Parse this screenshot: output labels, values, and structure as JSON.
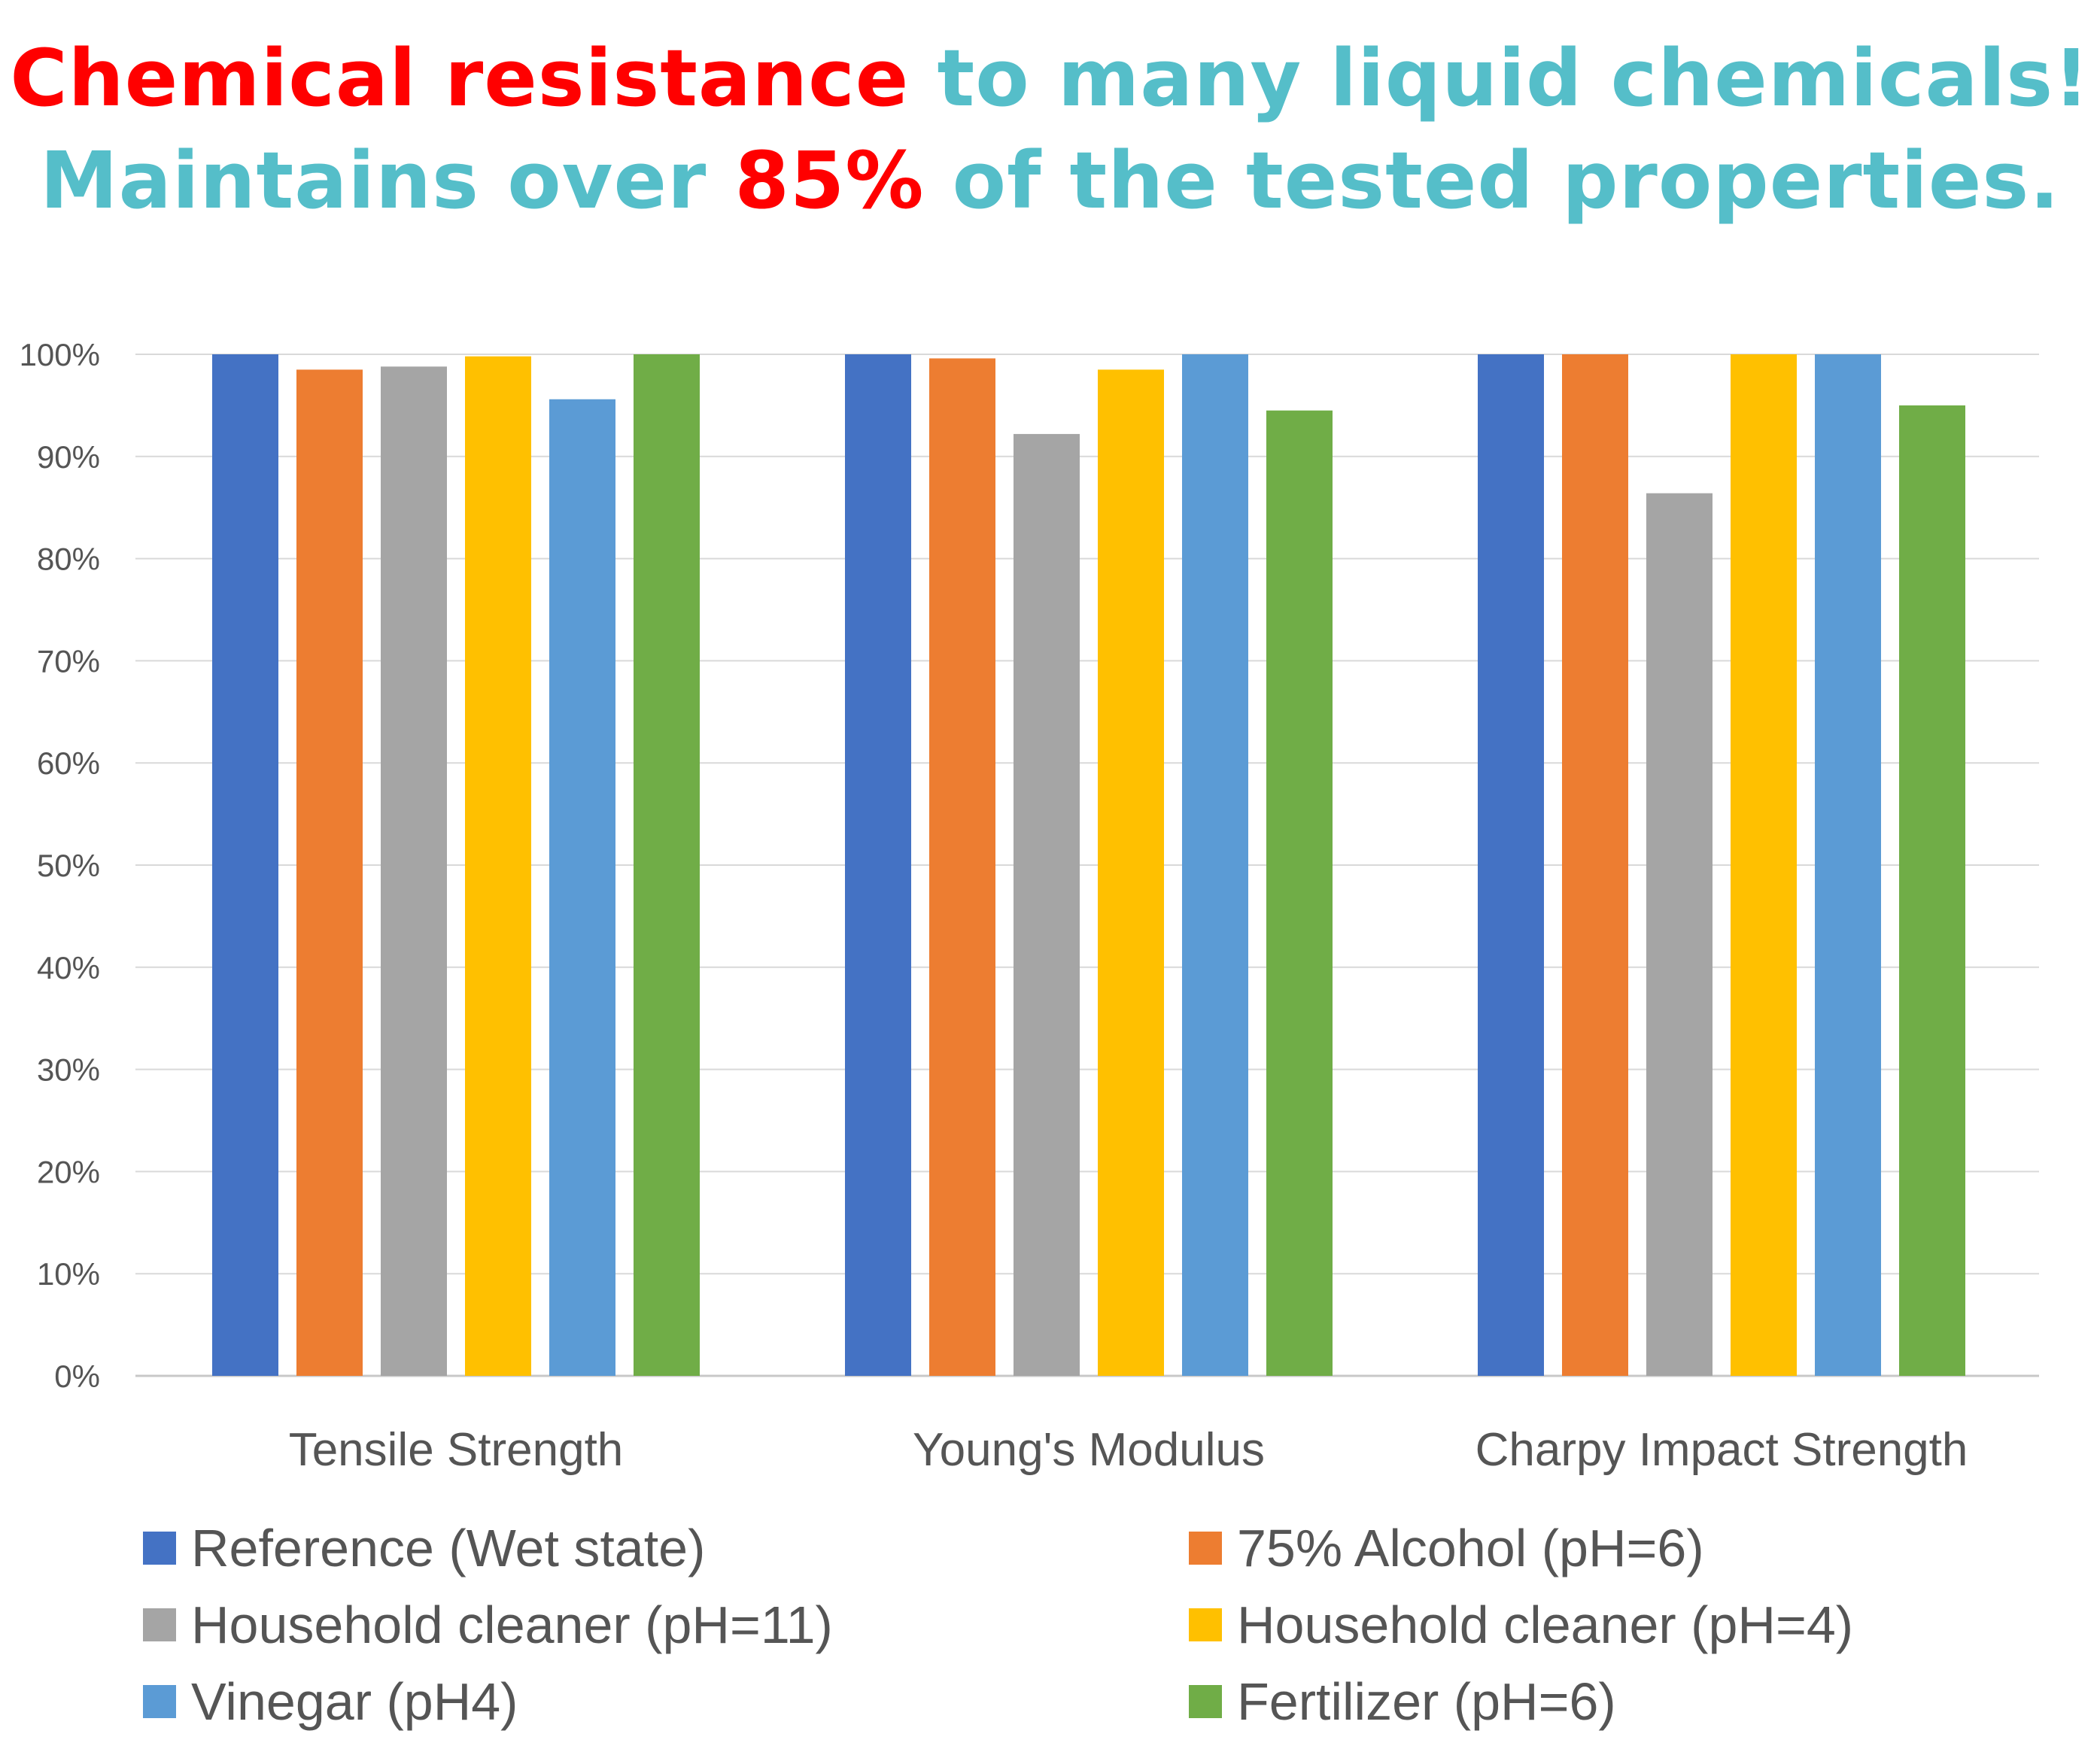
{
  "headline": {
    "line1_red": "Chemical resistance",
    "line1_teal": " to many liquid chemicals!",
    "line2_teal_a": "Maintains over ",
    "line2_red": "85%",
    "line2_teal_b": " of the tested properties."
  },
  "colors": {
    "red": "#ff0000",
    "teal": "#55bec9",
    "grid": "#d9d9d9",
    "text": "#555555"
  },
  "chart_data": {
    "type": "bar",
    "title": "",
    "xlabel": "",
    "ylabel": "",
    "ylim": [
      0,
      100
    ],
    "yticks": [
      {
        "value": 0,
        "label": "0%"
      },
      {
        "value": 10,
        "label": "10%"
      },
      {
        "value": 20,
        "label": "20%"
      },
      {
        "value": 30,
        "label": "30%"
      },
      {
        "value": 40,
        "label": "40%"
      },
      {
        "value": 50,
        "label": "50%"
      },
      {
        "value": 60,
        "label": "60%"
      },
      {
        "value": 70,
        "label": "70%"
      },
      {
        "value": 80,
        "label": "80%"
      },
      {
        "value": 90,
        "label": "90%"
      },
      {
        "value": 100,
        "label": "100%"
      }
    ],
    "categories": [
      "Tensile Strength",
      "Young's Modulus",
      "Charpy Impact Strength"
    ],
    "legend_position": "bottom",
    "grid": true,
    "series": [
      {
        "name": "Reference (Wet state)",
        "color": "#4472c4",
        "values": [
          100,
          100,
          100
        ]
      },
      {
        "name": "75% Alcohol (pH=6)",
        "color": "#ed7d31",
        "values": [
          98.5,
          99.6,
          100
        ]
      },
      {
        "name": "Household cleaner (pH=11)",
        "color": "#a5a5a5",
        "values": [
          98.8,
          92.2,
          86.4
        ]
      },
      {
        "name": "Household cleaner (pH=4)",
        "color": "#ffc000",
        "values": [
          99.8,
          98.5,
          100
        ]
      },
      {
        "name": "Vinegar (pH4)",
        "color": "#5b9bd5",
        "values": [
          95.6,
          100,
          100
        ]
      },
      {
        "name": "Fertilizer (pH=6)",
        "color": "#70ad47",
        "values": [
          100,
          94.5,
          95
        ]
      }
    ]
  }
}
